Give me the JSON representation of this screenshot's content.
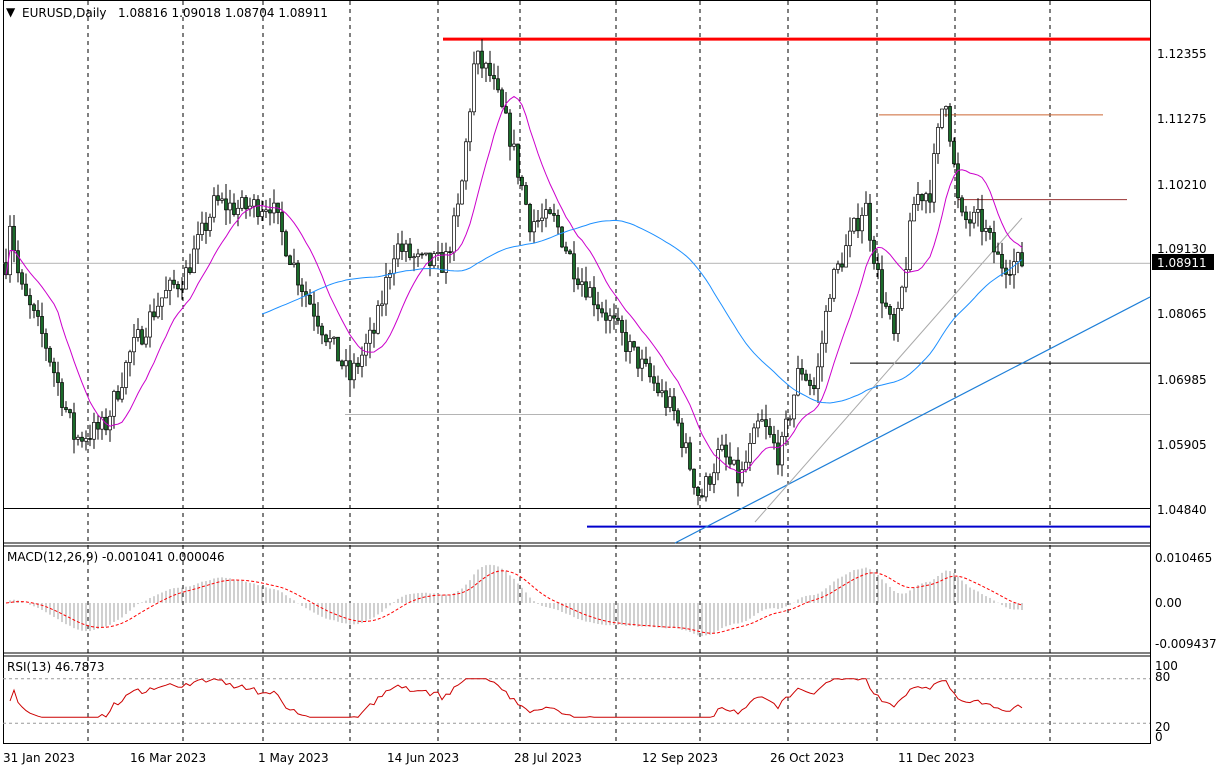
{
  "window": {
    "symbol_header": "EURUSD,Daily",
    "ohlc_header": "1.08816 1.09018 1.08704 1.08911"
  },
  "price_axis": {
    "labels": [
      "1.12355",
      "1.11275",
      "1.10210",
      "1.09130",
      "1.08065",
      "1.06985",
      "1.05905",
      "1.04840"
    ],
    "current_price": "1.08911"
  },
  "time_axis": {
    "labels": [
      "31 Jan 2023",
      "16 Mar 2023",
      "1 May 2023",
      "14 Jun 2023",
      "28 Jul 2023",
      "12 Sep 2023",
      "26 Oct 2023",
      "11 Dec 2023"
    ]
  },
  "macd": {
    "header": "MACD(12,26,9) -0.001041 0.000046",
    "labels": [
      "0.010465",
      "0.00",
      "-0.009437"
    ]
  },
  "rsi": {
    "header": "RSI(13) 46.7873",
    "labels": [
      "100",
      "80",
      "20",
      "0"
    ]
  },
  "colors": {
    "bull_candle": "#000000",
    "bear_body": "#1a6b2a",
    "ma_fast": "#cc00cc",
    "ma_slow": "#1e90ff",
    "resistance": "#ff0000",
    "support": "#0000cc",
    "macd_signal": "#ff0000",
    "rsi_line": "#cc0000",
    "price_tag": "#000000"
  },
  "chart_data": {
    "type": "candlestick",
    "symbol": "EURUSD",
    "timeframe": "Daily",
    "last_bar": {
      "open": 1.08816,
      "high": 1.09018,
      "low": 1.08704,
      "close": 1.08911
    },
    "x_dates": [
      "31 Jan 2023",
      "16 Mar 2023",
      "1 May 2023",
      "14 Jun 2023",
      "28 Jul 2023",
      "12 Sep 2023",
      "26 Oct 2023",
      "11 Dec 2023"
    ],
    "ylim": [
      1.0445,
      1.1282
    ],
    "horizontal_levels": [
      {
        "price": 1.126,
        "color": "#ff0000"
      },
      {
        "price": 1.1135,
        "color": "#cc6633"
      },
      {
        "price": 1.0995,
        "color": "#993333"
      },
      {
        "price": 1.089,
        "color": "#888888"
      },
      {
        "price": 1.0725,
        "color": "#000000"
      },
      {
        "price": 1.064,
        "color": "#888888"
      },
      {
        "price": 1.0485,
        "color": "#000000"
      },
      {
        "price": 1.0455,
        "color": "#0000cc"
      }
    ],
    "macd": {
      "value": -0.001041,
      "signal": 4.6e-05,
      "ylim": [
        -0.009437,
        0.010465
      ]
    },
    "rsi": {
      "period": 13,
      "value": 46.7873,
      "levels": [
        20,
        80
      ],
      "ylim": [
        0,
        100
      ]
    }
  }
}
